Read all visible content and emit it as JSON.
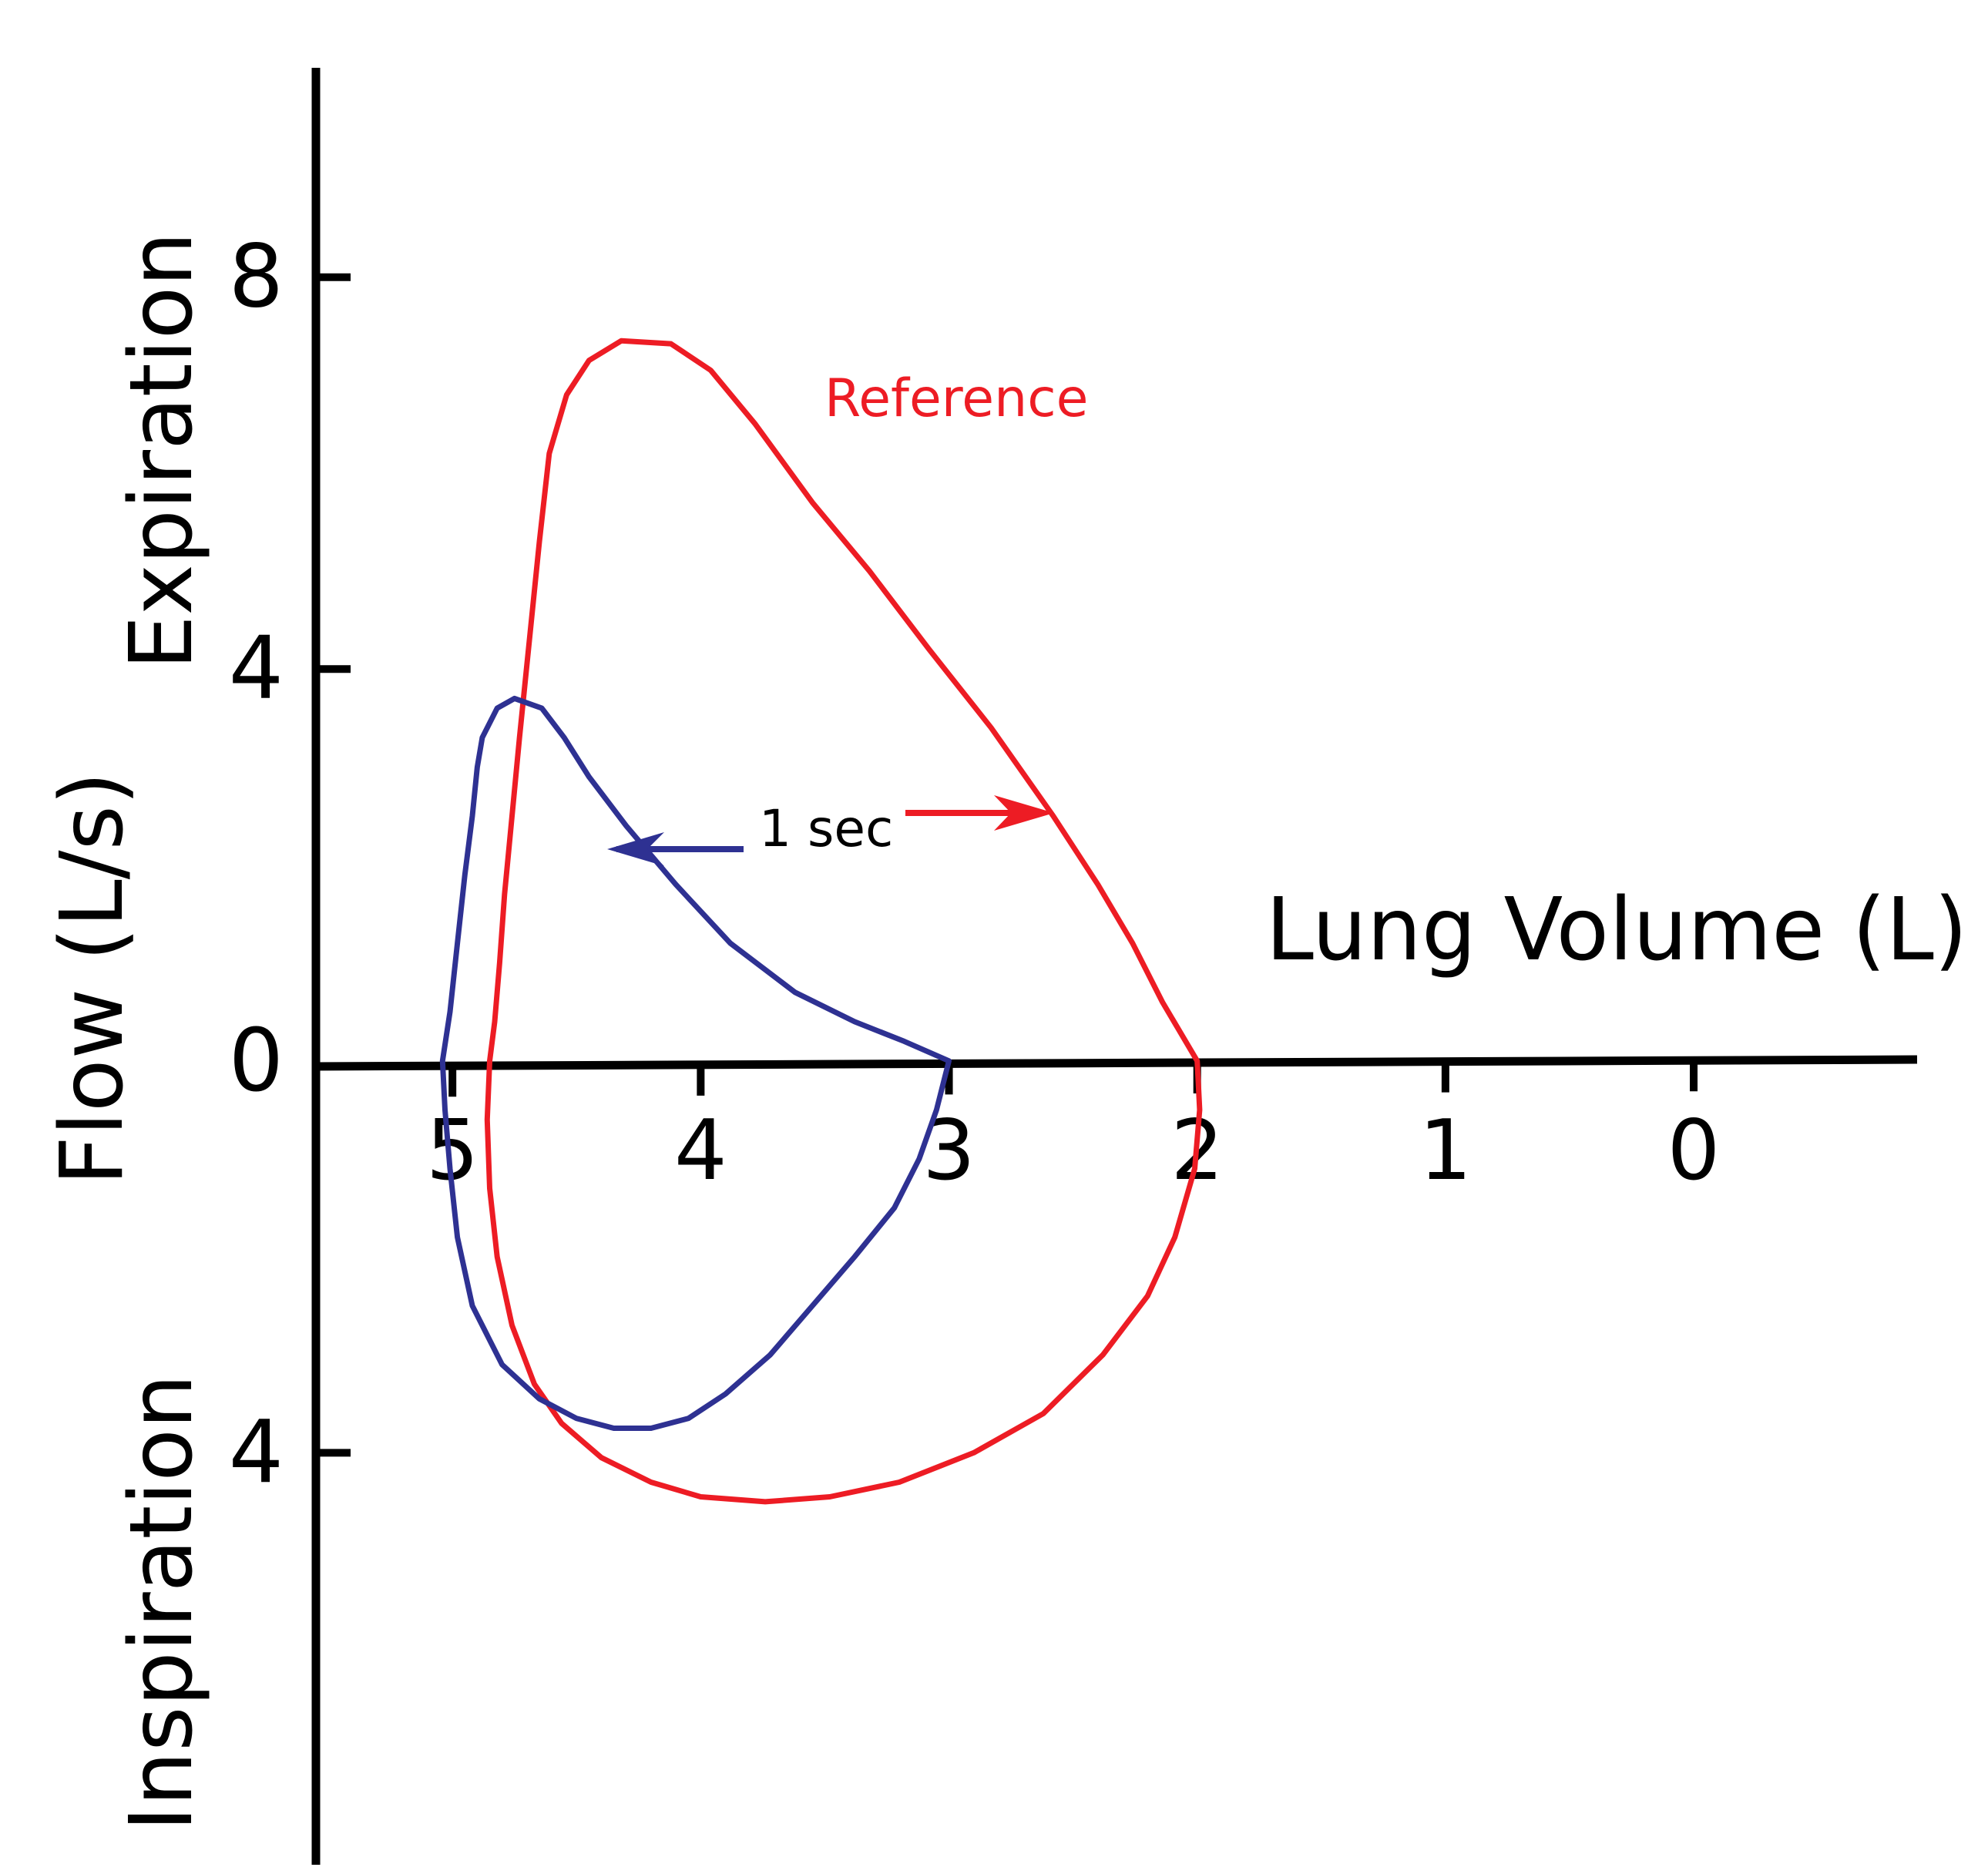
{
  "chart_data": {
    "type": "line",
    "xlabel": "Lung Volume (L)",
    "ylabel": "Flow (L/s)",
    "upper_label": "Expiration",
    "lower_label": "Inspiration",
    "x_ticks": [
      5,
      4,
      3,
      2,
      1,
      0
    ],
    "y_ticks": [
      {
        "value": 8,
        "label": "8"
      },
      {
        "value": 4,
        "label": "4"
      },
      {
        "value": 0,
        "label": "0"
      },
      {
        "value": -4,
        "label": "4"
      }
    ],
    "xlim": [
      5.55,
      -0.9
    ],
    "ylim": [
      -8.3,
      10.2
    ],
    "reference_label": "Reference",
    "time_marker_label": "1 sec",
    "series": [
      {
        "id": "reference",
        "color": "#ED1C24",
        "points": [
          [
            4.85,
            0.0
          ],
          [
            4.83,
            0.4
          ],
          [
            4.81,
            1.0
          ],
          [
            4.79,
            1.7
          ],
          [
            4.76,
            2.5
          ],
          [
            4.73,
            3.3
          ],
          [
            4.69,
            4.3
          ],
          [
            4.65,
            5.3
          ],
          [
            4.61,
            6.2
          ],
          [
            4.54,
            6.8
          ],
          [
            4.45,
            7.15
          ],
          [
            4.32,
            7.35
          ],
          [
            4.12,
            7.32
          ],
          [
            3.96,
            7.05
          ],
          [
            3.78,
            6.5
          ],
          [
            3.55,
            5.7
          ],
          [
            3.32,
            5.0
          ],
          [
            3.08,
            4.2
          ],
          [
            2.83,
            3.4
          ],
          [
            2.58,
            2.5
          ],
          [
            2.4,
            1.8
          ],
          [
            2.26,
            1.2
          ],
          [
            2.14,
            0.6
          ],
          [
            2.0,
            0.0
          ],
          [
            1.99,
            -0.5
          ],
          [
            2.01,
            -1.1
          ],
          [
            2.09,
            -1.8
          ],
          [
            2.2,
            -2.4
          ],
          [
            2.38,
            -3.0
          ],
          [
            2.62,
            -3.6
          ],
          [
            2.9,
            -4.0
          ],
          [
            3.2,
            -4.3
          ],
          [
            3.48,
            -4.45
          ],
          [
            3.74,
            -4.5
          ],
          [
            4.0,
            -4.45
          ],
          [
            4.2,
            -4.3
          ],
          [
            4.4,
            -4.05
          ],
          [
            4.56,
            -3.7
          ],
          [
            4.67,
            -3.3
          ],
          [
            4.76,
            -2.7
          ],
          [
            4.82,
            -2.0
          ],
          [
            4.85,
            -1.3
          ],
          [
            4.86,
            -0.6
          ],
          [
            4.85,
            0.0
          ]
        ]
      },
      {
        "id": "patient",
        "color": "#2E3192",
        "points": [
          [
            5.04,
            0.0
          ],
          [
            5.01,
            0.5
          ],
          [
            4.98,
            1.2
          ],
          [
            4.95,
            1.9
          ],
          [
            4.92,
            2.5
          ],
          [
            4.9,
            3.0
          ],
          [
            4.88,
            3.3
          ],
          [
            4.82,
            3.6
          ],
          [
            4.75,
            3.7
          ],
          [
            4.64,
            3.6
          ],
          [
            4.55,
            3.3
          ],
          [
            4.45,
            2.9
          ],
          [
            4.3,
            2.4
          ],
          [
            4.1,
            1.8
          ],
          [
            3.88,
            1.2
          ],
          [
            3.62,
            0.7
          ],
          [
            3.38,
            0.4
          ],
          [
            3.18,
            0.2
          ],
          [
            3.0,
            0.0
          ],
          [
            3.05,
            -0.5
          ],
          [
            3.12,
            -1.0
          ],
          [
            3.22,
            -1.5
          ],
          [
            3.38,
            -2.0
          ],
          [
            3.55,
            -2.5
          ],
          [
            3.72,
            -3.0
          ],
          [
            3.9,
            -3.4
          ],
          [
            4.05,
            -3.65
          ],
          [
            4.2,
            -3.75
          ],
          [
            4.35,
            -3.75
          ],
          [
            4.5,
            -3.65
          ],
          [
            4.65,
            -3.45
          ],
          [
            4.8,
            -3.1
          ],
          [
            4.92,
            -2.5
          ],
          [
            4.98,
            -1.8
          ],
          [
            5.01,
            -1.1
          ],
          [
            5.03,
            -0.5
          ],
          [
            5.04,
            0.0
          ]
        ]
      }
    ]
  }
}
